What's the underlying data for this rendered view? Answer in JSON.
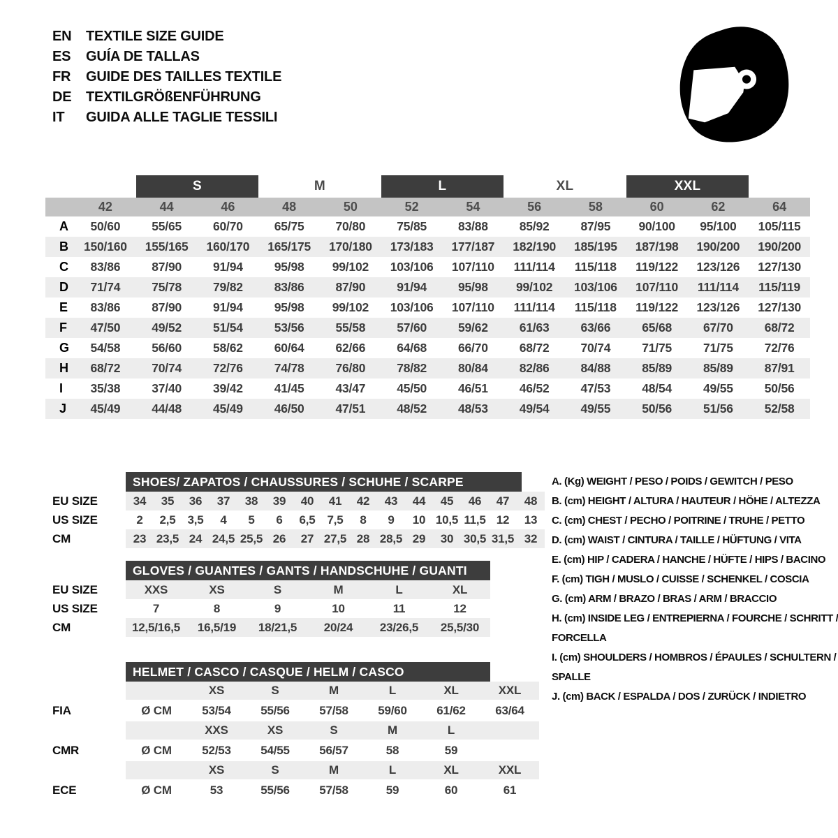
{
  "header": {
    "languages": [
      {
        "code": "EN",
        "title": "TEXTILE SIZE GUIDE"
      },
      {
        "code": "ES",
        "title": "GUÍA DE TALLAS"
      },
      {
        "code": "FR",
        "title": "GUIDE DES TAILLES TEXTILE"
      },
      {
        "code": "DE",
        "title": "TEXTILGRÖßENFÜHRUNG"
      },
      {
        "code": "IT",
        "title": "GUIDA ALLE TAGLIE TESSILI"
      }
    ],
    "icon": "racing-helmet-icon"
  },
  "size_table": {
    "size_bands": [
      {
        "label": "S",
        "dark": true,
        "covers": [
          "44",
          "46"
        ]
      },
      {
        "label": "M",
        "dark": false,
        "covers": [
          "48",
          "50"
        ]
      },
      {
        "label": "L",
        "dark": true,
        "covers": [
          "52",
          "54"
        ]
      },
      {
        "label": "XL",
        "dark": false,
        "covers": [
          "56",
          "58"
        ]
      },
      {
        "label": "XXL",
        "dark": true,
        "covers": [
          "60",
          "62"
        ]
      }
    ],
    "columns": [
      "42",
      "44",
      "46",
      "48",
      "50",
      "52",
      "54",
      "56",
      "58",
      "60",
      "62",
      "64"
    ],
    "rows": [
      {
        "label": "A",
        "values": [
          "50/60",
          "55/65",
          "60/70",
          "65/75",
          "70/80",
          "75/85",
          "83/88",
          "85/92",
          "87/95",
          "90/100",
          "95/100",
          "105/115"
        ]
      },
      {
        "label": "B",
        "values": [
          "150/160",
          "155/165",
          "160/170",
          "165/175",
          "170/180",
          "173/183",
          "177/187",
          "182/190",
          "185/195",
          "187/198",
          "190/200",
          "190/200"
        ]
      },
      {
        "label": "C",
        "values": [
          "83/86",
          "87/90",
          "91/94",
          "95/98",
          "99/102",
          "103/106",
          "107/110",
          "111/114",
          "115/118",
          "119/122",
          "123/126",
          "127/130"
        ]
      },
      {
        "label": "D",
        "values": [
          "71/74",
          "75/78",
          "79/82",
          "83/86",
          "87/90",
          "91/94",
          "95/98",
          "99/102",
          "103/106",
          "107/110",
          "111/114",
          "115/119"
        ]
      },
      {
        "label": "E",
        "values": [
          "83/86",
          "87/90",
          "91/94",
          "95/98",
          "99/102",
          "103/106",
          "107/110",
          "111/114",
          "115/118",
          "119/122",
          "123/126",
          "127/130"
        ]
      },
      {
        "label": "F",
        "values": [
          "47/50",
          "49/52",
          "51/54",
          "53/56",
          "55/58",
          "57/60",
          "59/62",
          "61/63",
          "63/66",
          "65/68",
          "67/70",
          "68/72"
        ]
      },
      {
        "label": "G",
        "values": [
          "54/58",
          "56/60",
          "58/62",
          "60/64",
          "62/66",
          "64/68",
          "66/70",
          "68/72",
          "70/74",
          "71/75",
          "71/75",
          "72/76"
        ]
      },
      {
        "label": "H",
        "values": [
          "68/72",
          "70/74",
          "72/76",
          "74/78",
          "76/80",
          "78/82",
          "80/84",
          "82/86",
          "84/88",
          "85/89",
          "85/89",
          "87/91"
        ]
      },
      {
        "label": "I",
        "values": [
          "35/38",
          "37/40",
          "39/42",
          "41/45",
          "43/47",
          "45/50",
          "46/51",
          "46/52",
          "47/53",
          "48/54",
          "49/55",
          "50/56"
        ]
      },
      {
        "label": "J",
        "values": [
          "45/49",
          "44/48",
          "45/49",
          "46/50",
          "47/51",
          "48/52",
          "48/53",
          "49/54",
          "49/55",
          "50/56",
          "51/56",
          "52/58"
        ]
      }
    ]
  },
  "shoes": {
    "title": "SHOES/ ZAPATOS / CHAUSSURES / SCHUHE / SCARPE",
    "rows": [
      {
        "label": "EU SIZE",
        "values": [
          "34",
          "35",
          "36",
          "37",
          "38",
          "39",
          "40",
          "41",
          "42",
          "43",
          "44",
          "45",
          "46",
          "47",
          "48"
        ]
      },
      {
        "label": "US SIZE",
        "values": [
          "2",
          "2,5",
          "3,5",
          "4",
          "5",
          "6",
          "6,5",
          "7,5",
          "8",
          "9",
          "10",
          "10,5",
          "11,5",
          "12",
          "13"
        ]
      },
      {
        "label": "CM",
        "values": [
          "23",
          "23,5",
          "24",
          "24,5",
          "25,5",
          "26",
          "27",
          "27,5",
          "28",
          "28,5",
          "29",
          "30",
          "30,5",
          "31,5",
          "32"
        ]
      }
    ]
  },
  "gloves": {
    "title": "GLOVES / GUANTES / GANTS / HANDSCHUHE / GUANTI",
    "rows": [
      {
        "label": "EU SIZE",
        "values": [
          "XXS",
          "XS",
          "S",
          "M",
          "L",
          "XL"
        ]
      },
      {
        "label": "US SIZE",
        "values": [
          "7",
          "8",
          "9",
          "10",
          "11",
          "12"
        ]
      },
      {
        "label": "CM",
        "values": [
          "12,5/16,5",
          "16,5/19",
          "18/21,5",
          "20/24",
          "23/26,5",
          "25,5/30"
        ]
      }
    ]
  },
  "helmet": {
    "title": "HELMET / CASCO / CASQUE / HELM / CASCO",
    "groups": [
      {
        "label": "FIA",
        "unit": "Ø CM",
        "sizes": [
          "XS",
          "S",
          "M",
          "L",
          "XL",
          "XXL"
        ],
        "values": [
          "53/54",
          "55/56",
          "57/58",
          "59/60",
          "61/62",
          "63/64"
        ]
      },
      {
        "label": "CMR",
        "unit": "Ø CM",
        "sizes": [
          "XXS",
          "XS",
          "S",
          "M",
          "L"
        ],
        "values": [
          "52/53",
          "54/55",
          "56/57",
          "58",
          "59"
        ]
      },
      {
        "label": "ECE",
        "unit": "Ø CM",
        "sizes": [
          "XS",
          "S",
          "M",
          "L",
          "XL",
          "XXL"
        ],
        "values": [
          "53",
          "55/56",
          "57/58",
          "59",
          "60",
          "61"
        ]
      }
    ]
  },
  "legend": {
    "items": [
      "A. (Kg) WEIGHT / PESO / POIDS / GEWITCH / PESO",
      "B. (cm) HEIGHT / ALTURA / HAUTEUR / HÖHE / ALTEZZA",
      "C. (cm) CHEST / PECHO / POITRINE / TRUHE / PETTO",
      "D. (cm) WAIST / CINTURA / TAILLE / HÜFTUNG / VITA",
      "E. (cm) HIP / CADERA / HANCHE / HÜFTE / HIPS /  BACINO",
      "F. (cm) TIGH / MUSLO / CUISSE / SCHENKEL / COSCIA",
      "G. (cm) ARM  / BRAZO / BRAS / ARM / BRACCIO",
      "H. (cm) INSIDE LEG / ENTREPIERNA / FOURCHE / SCHRITT / FORCELLA",
      "I.  (cm) SHOULDERS / HOMBROS / ÉPAULES / SCHULTERN / SPALLE",
      "J. (cm) BACK / ESPALDA / DOS / ZURÜCK / INDIETRO"
    ]
  },
  "colors": {
    "dark_bar": "#3d3d3d",
    "header_row": "#c4c4c4",
    "stripe": "#ededed",
    "cell_text": "#3c3c3c",
    "label_text": "#0d0d0d"
  }
}
